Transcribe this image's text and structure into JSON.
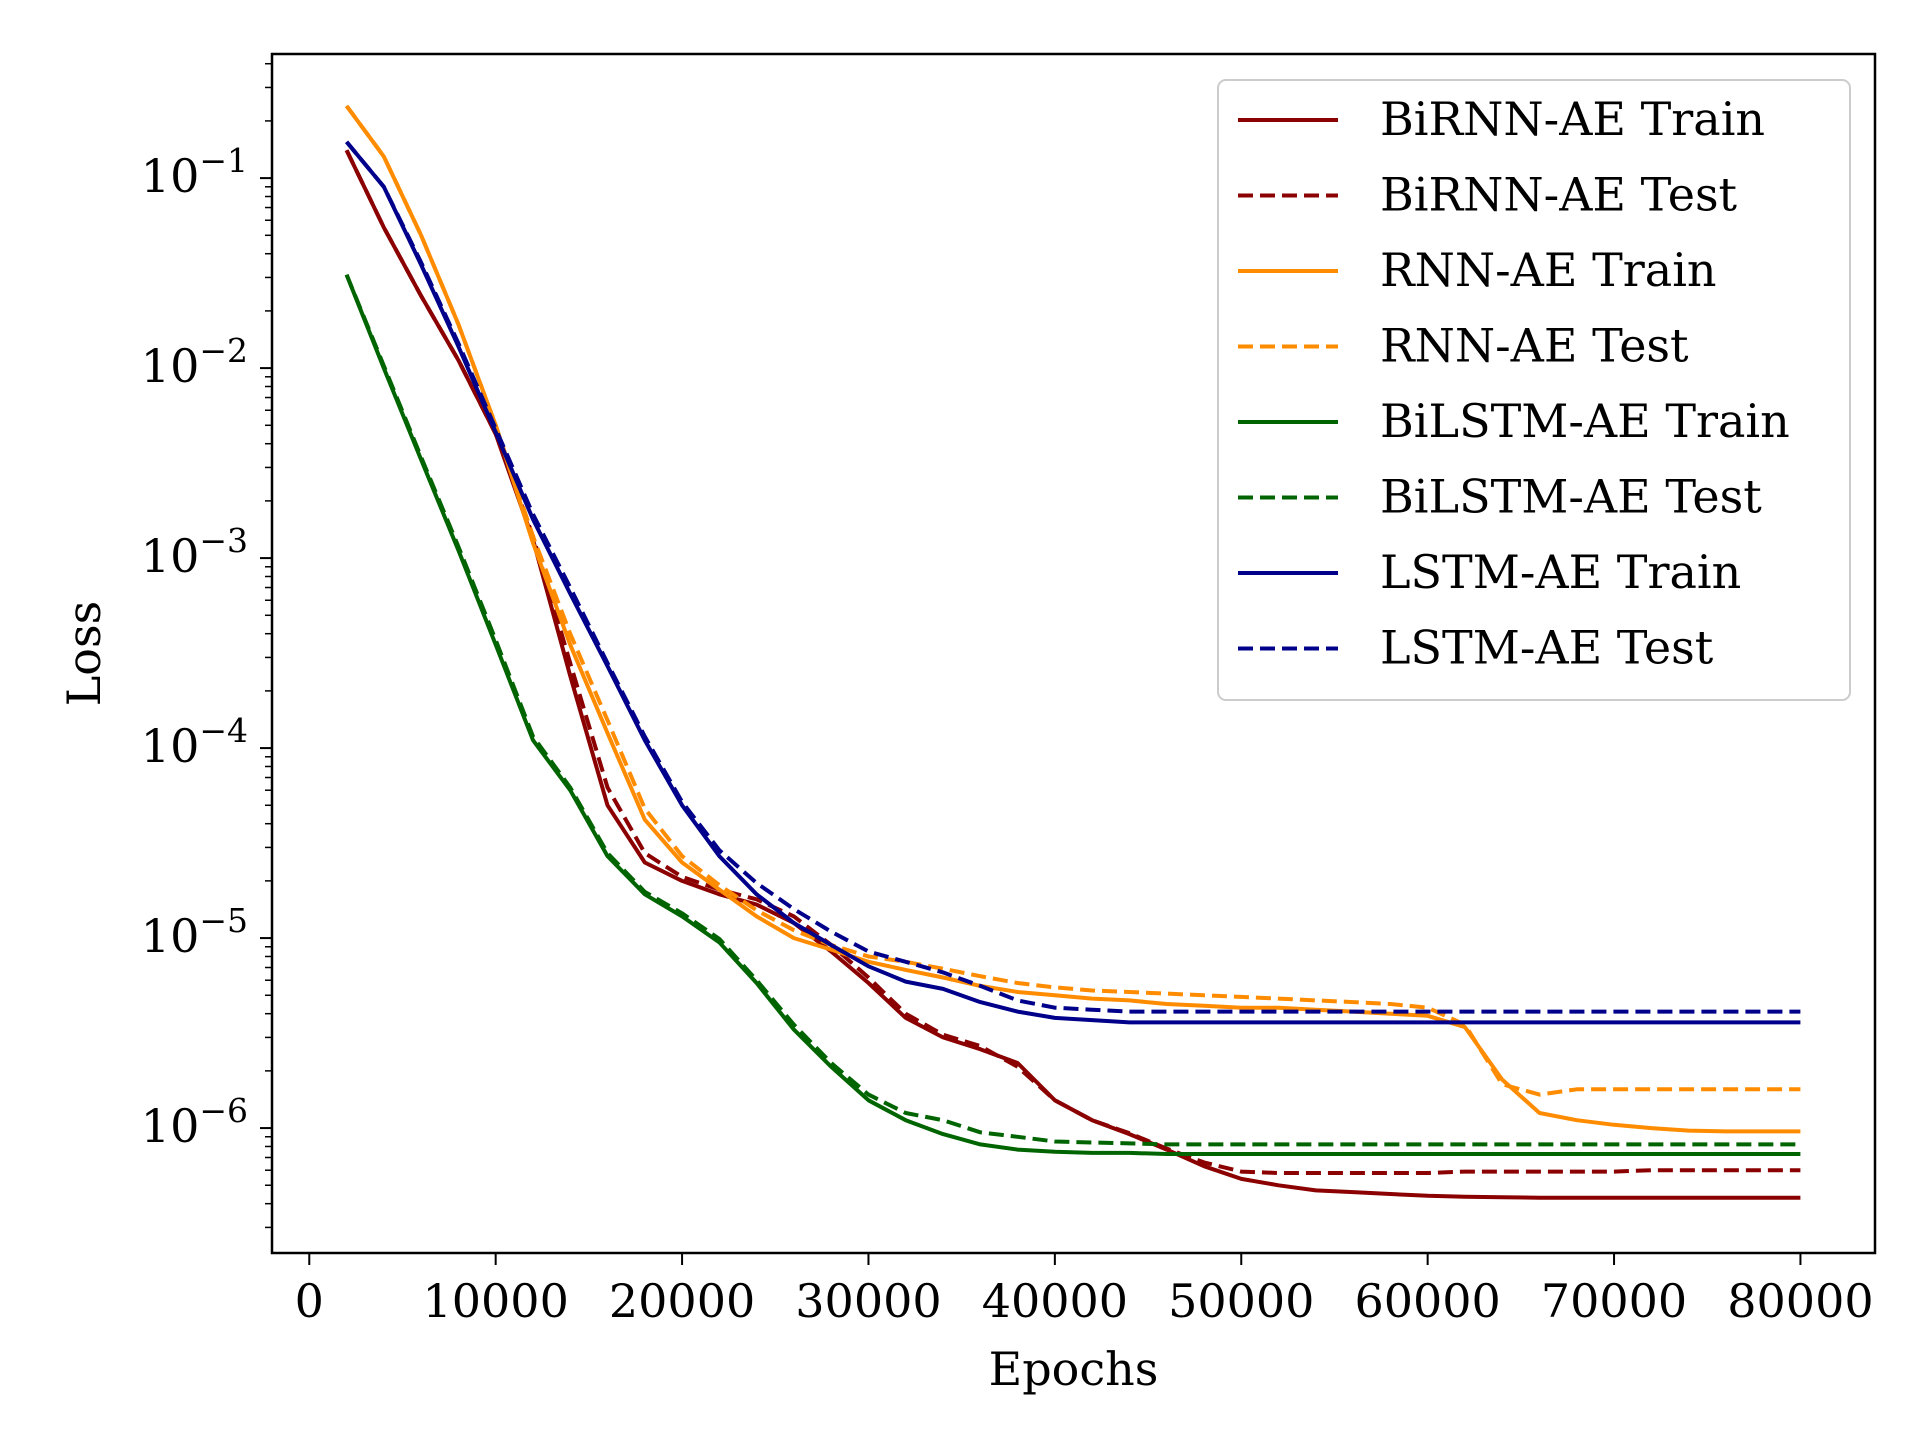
{
  "chart_data": {
    "type": "line",
    "title": "",
    "xlabel": "Epochs",
    "ylabel": "Loss",
    "xlim": [
      -2000,
      84000
    ],
    "ylim": [
      2.2e-07,
      0.45
    ],
    "yscale": "log",
    "grid": false,
    "legend_position": "top-right",
    "x_ticks": [
      0,
      10000,
      20000,
      30000,
      40000,
      50000,
      60000,
      70000,
      80000
    ],
    "x_tick_labels": [
      "0",
      "10000",
      "20000",
      "30000",
      "40000",
      "50000",
      "60000",
      "70000",
      "80000"
    ],
    "y_ticks": [
      1e-06,
      1e-05,
      0.0001,
      0.001,
      0.01,
      0.1
    ],
    "y_tick_labels": [
      {
        "base": "10",
        "exp": "−6"
      },
      {
        "base": "10",
        "exp": "−5"
      },
      {
        "base": "10",
        "exp": "−4"
      },
      {
        "base": "10",
        "exp": "−3"
      },
      {
        "base": "10",
        "exp": "−2"
      },
      {
        "base": "10",
        "exp": "−1"
      }
    ],
    "x": [
      2000,
      4000,
      6000,
      8000,
      10000,
      12000,
      14000,
      16000,
      18000,
      20000,
      22000,
      24000,
      26000,
      28000,
      30000,
      32000,
      34000,
      36000,
      38000,
      40000,
      42000,
      44000,
      46000,
      48000,
      50000,
      52000,
      54000,
      56000,
      58000,
      60000,
      62000,
      64000,
      66000,
      68000,
      70000,
      72000,
      74000,
      76000,
      78000,
      80000
    ],
    "series": [
      {
        "name": "BiRNN-AE Train",
        "color": "#8b0000",
        "dash": "solid",
        "values": [
          0.14,
          0.055,
          0.024,
          0.011,
          0.0045,
          0.00125,
          0.00024,
          5e-05,
          2.5e-05,
          2e-05,
          1.7e-05,
          1.5e-05,
          1.2e-05,
          8.5e-06,
          5.8e-06,
          3.8e-06,
          3e-06,
          2.6e-06,
          2.2e-06,
          1.4e-06,
          1.1e-06,
          9.3e-07,
          7.7e-07,
          6.3e-07,
          5.4e-07,
          5e-07,
          4.7e-07,
          4.6e-07,
          4.5e-07,
          4.4e-07,
          4.35e-07,
          4.32e-07,
          4.3e-07,
          4.3e-07,
          4.3e-07,
          4.3e-07,
          4.3e-07,
          4.3e-07,
          4.3e-07,
          4.3e-07
        ]
      },
      {
        "name": "BiRNN-AE Test",
        "color": "#8b0000",
        "dash": "dashed",
        "values": [
          0.14,
          0.055,
          0.024,
          0.011,
          0.0045,
          0.0013,
          0.00028,
          6.2e-05,
          2.8e-05,
          2.1e-05,
          1.8e-05,
          1.6e-05,
          1.3e-05,
          9.2e-06,
          6.2e-06,
          4e-06,
          3.1e-06,
          2.7e-06,
          2.1e-06,
          1.4e-06,
          1.1e-06,
          9.4e-07,
          7.8e-07,
          6.6e-07,
          5.9e-07,
          5.8e-07,
          5.8e-07,
          5.8e-07,
          5.8e-07,
          5.8e-07,
          5.9e-07,
          5.9e-07,
          5.9e-07,
          5.9e-07,
          5.9e-07,
          6e-07,
          6e-07,
          6e-07,
          6e-07,
          6e-07
        ]
      },
      {
        "name": "RNN-AE Train",
        "color": "#ff8c00",
        "dash": "solid",
        "values": [
          0.24,
          0.13,
          0.05,
          0.017,
          0.005,
          0.0012,
          0.00035,
          0.00012,
          4.2e-05,
          2.5e-05,
          1.8e-05,
          1.3e-05,
          1e-05,
          8.7e-06,
          7.5e-06,
          6.8e-06,
          6.2e-06,
          5.6e-06,
          5.2e-06,
          5e-06,
          4.8e-06,
          4.7e-06,
          4.5e-06,
          4.4e-06,
          4.3e-06,
          4.3e-06,
          4.2e-06,
          4.1e-06,
          4e-06,
          3.9e-06,
          3.4e-06,
          1.8e-06,
          1.2e-06,
          1.1e-06,
          1.04e-06,
          1e-06,
          9.7e-07,
          9.6e-07,
          9.6e-07,
          9.6e-07
        ]
      },
      {
        "name": "RNN-AE Test",
        "color": "#ff8c00",
        "dash": "dashed",
        "values": [
          0.24,
          0.13,
          0.05,
          0.017,
          0.005,
          0.0013,
          0.0004,
          0.00014,
          4.8e-05,
          2.7e-05,
          1.9e-05,
          1.4e-05,
          1.1e-05,
          9.2e-06,
          8e-06,
          7.5e-06,
          6.9e-06,
          6.3e-06,
          5.8e-06,
          5.5e-06,
          5.3e-06,
          5.2e-06,
          5.1e-06,
          5e-06,
          4.9e-06,
          4.8e-06,
          4.7e-06,
          4.6e-06,
          4.5e-06,
          4.3e-06,
          3.5e-06,
          1.7e-06,
          1.5e-06,
          1.6e-06,
          1.6e-06,
          1.6e-06,
          1.6e-06,
          1.6e-06,
          1.6e-06,
          1.6e-06
        ]
      },
      {
        "name": "BiLSTM-AE Train",
        "color": "#006400",
        "dash": "solid",
        "values": [
          0.031,
          0.01,
          0.0033,
          0.0011,
          0.00035,
          0.00011,
          6e-05,
          2.7e-05,
          1.7e-05,
          1.3e-05,
          9.5e-06,
          5.8e-06,
          3.3e-06,
          2.1e-06,
          1.4e-06,
          1.1e-06,
          9.3e-07,
          8.2e-07,
          7.7e-07,
          7.5e-07,
          7.4e-07,
          7.4e-07,
          7.3e-07,
          7.3e-07,
          7.3e-07,
          7.3e-07,
          7.3e-07,
          7.3e-07,
          7.3e-07,
          7.3e-07,
          7.3e-07,
          7.3e-07,
          7.3e-07,
          7.3e-07,
          7.3e-07,
          7.3e-07,
          7.3e-07,
          7.3e-07,
          7.3e-07,
          7.3e-07
        ]
      },
      {
        "name": "BiLSTM-AE Test",
        "color": "#006400",
        "dash": "dashed",
        "values": [
          0.031,
          0.0103,
          0.0034,
          0.00115,
          0.00037,
          0.000115,
          6.2e-05,
          2.8e-05,
          1.75e-05,
          1.35e-05,
          9.9e-06,
          6e-06,
          3.5e-06,
          2.2e-06,
          1.5e-06,
          1.2e-06,
          1.1e-06,
          9.5e-07,
          9e-07,
          8.5e-07,
          8.4e-07,
          8.3e-07,
          8.2e-07,
          8.2e-07,
          8.2e-07,
          8.2e-07,
          8.2e-07,
          8.2e-07,
          8.2e-07,
          8.2e-07,
          8.2e-07,
          8.2e-07,
          8.2e-07,
          8.2e-07,
          8.2e-07,
          8.2e-07,
          8.2e-07,
          8.2e-07,
          8.2e-07,
          8.2e-07
        ]
      },
      {
        "name": "LSTM-AE Train",
        "color": "#00008b",
        "dash": "solid",
        "values": [
          0.155,
          0.09,
          0.035,
          0.013,
          0.0046,
          0.0016,
          0.00065,
          0.00027,
          0.00011,
          5e-05,
          2.7e-05,
          1.7e-05,
          1.2e-05,
          9.2e-06,
          7.1e-06,
          5.9e-06,
          5.4e-06,
          4.6e-06,
          4.1e-06,
          3.8e-06,
          3.7e-06,
          3.6e-06,
          3.6e-06,
          3.6e-06,
          3.6e-06,
          3.6e-06,
          3.6e-06,
          3.6e-06,
          3.6e-06,
          3.6e-06,
          3.6e-06,
          3.6e-06,
          3.6e-06,
          3.6e-06,
          3.6e-06,
          3.6e-06,
          3.6e-06,
          3.6e-06,
          3.6e-06,
          3.6e-06
        ]
      },
      {
        "name": "LSTM-AE Test",
        "color": "#00008b",
        "dash": "dashed",
        "values": [
          0.155,
          0.09,
          0.036,
          0.0135,
          0.0048,
          0.0017,
          0.0007,
          0.00028,
          0.000115,
          5.2e-05,
          2.9e-05,
          1.95e-05,
          1.42e-05,
          1.08e-05,
          8.5e-06,
          7.5e-06,
          6.6e-06,
          5.6e-06,
          4.7e-06,
          4.3e-06,
          4.2e-06,
          4.1e-06,
          4.1e-06,
          4.1e-06,
          4.1e-06,
          4.1e-06,
          4.1e-06,
          4.1e-06,
          4.1e-06,
          4.1e-06,
          4.1e-06,
          4.1e-06,
          4.1e-06,
          4.1e-06,
          4.1e-06,
          4.1e-06,
          4.1e-06,
          4.1e-06,
          4.1e-06,
          4.1e-06
        ]
      }
    ]
  }
}
